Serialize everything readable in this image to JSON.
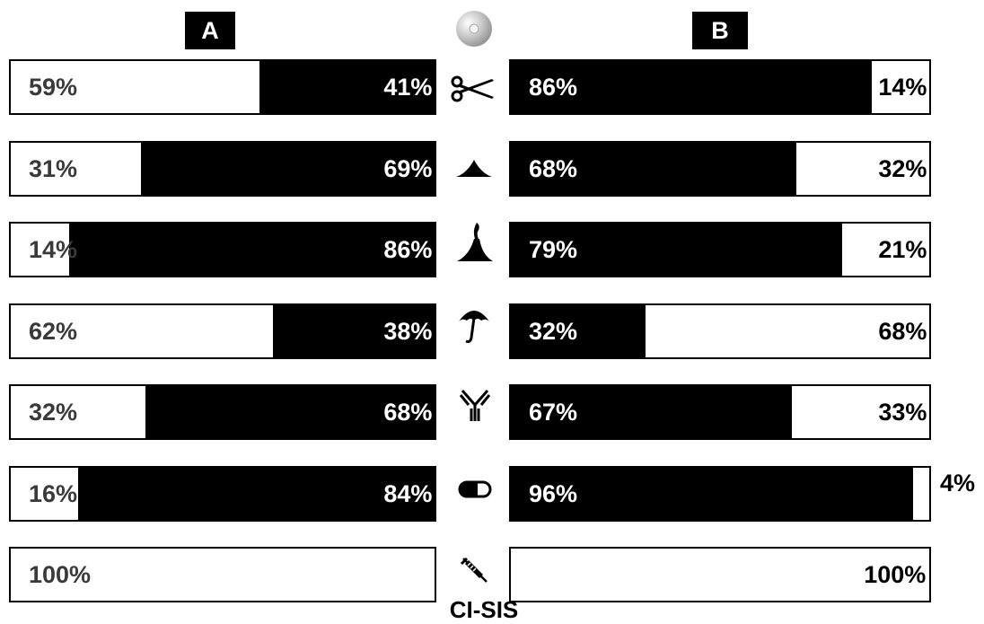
{
  "chart_data": {
    "type": "bar",
    "subtype": "stacked-100-horizontal",
    "panels": [
      {
        "label": "A",
        "series": [
          {
            "color": "#ffffff",
            "values": [
              59,
              31,
              14,
              62,
              32,
              16,
              100
            ]
          },
          {
            "color": "#000000",
            "values": [
              41,
              69,
              86,
              38,
              68,
              84,
              0
            ]
          }
        ],
        "value_labels": [
          [
            "59%",
            "41%"
          ],
          [
            "31%",
            "69%"
          ],
          [
            "14%",
            "86%"
          ],
          [
            "62%",
            "38%"
          ],
          [
            "32%",
            "68%"
          ],
          [
            "16%",
            "84%"
          ],
          [
            "100%",
            ""
          ]
        ]
      },
      {
        "label": "B",
        "series": [
          {
            "color": "#000000",
            "values": [
              86,
              68,
              79,
              32,
              67,
              96,
              0
            ]
          },
          {
            "color": "#ffffff",
            "values": [
              14,
              32,
              21,
              68,
              33,
              4,
              100
            ]
          }
        ],
        "value_labels": [
          [
            "86%",
            "14%"
          ],
          [
            "68%",
            "32%"
          ],
          [
            "79%",
            "21%"
          ],
          [
            "32%",
            "68%"
          ],
          [
            "67%",
            "33%"
          ],
          [
            "96%",
            "4%"
          ],
          [
            "",
            "100%"
          ]
        ]
      }
    ],
    "row_icons": [
      "scissors-icon",
      "mountain-icon",
      "volcano-icon",
      "umbrella-icon",
      "antibody-icon",
      "capsule-icon",
      "syringe-icon"
    ],
    "header_icon": "cd-disc-icon",
    "footer_label": "CI-SIS",
    "xlim": [
      0,
      100
    ],
    "grid": false,
    "legend": "none"
  }
}
